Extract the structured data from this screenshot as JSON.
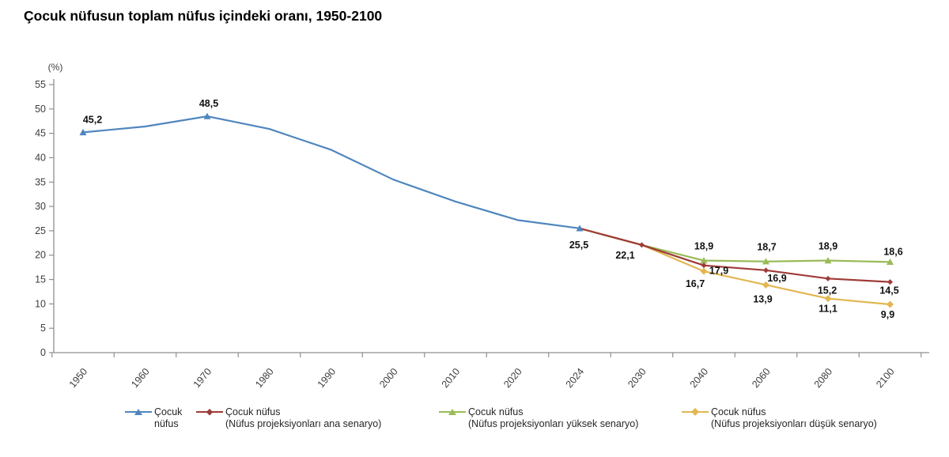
{
  "chart_data": {
    "type": "line",
    "title": "Çocuk nüfusun toplam nüfus içindeki oranı, 1950-2100",
    "y_axis_unit": "(%)",
    "ylim": [
      0,
      55
    ],
    "y_tick_step": 5,
    "y_ticks": [
      0,
      5,
      10,
      15,
      20,
      25,
      30,
      35,
      40,
      45,
      50,
      55
    ],
    "grid": "off",
    "legend_position": "bottom",
    "categories": [
      "1950",
      "1960",
      "1970",
      "1980",
      "1990",
      "2000",
      "2010",
      "2020",
      "2024",
      "2030",
      "2040",
      "2060",
      "2080",
      "2100"
    ],
    "series": [
      {
        "name": "Çocuk nüfus",
        "color": "#4f86be",
        "marker": "triangle",
        "marker_size": 4.5,
        "points": [
          {
            "x": "1950",
            "y": 45.2,
            "label": "45,2",
            "marker": true,
            "label_dx": 12,
            "label_dy": -16
          },
          {
            "x": "1960",
            "y": 46.4,
            "marker": false
          },
          {
            "x": "1970",
            "y": 48.5,
            "label": "48,5",
            "marker": true,
            "label_dx": 2,
            "label_dy": -16
          },
          {
            "x": "1980",
            "y": 45.9,
            "marker": false
          },
          {
            "x": "1990",
            "y": 41.6,
            "marker": false
          },
          {
            "x": "2000",
            "y": 35.5,
            "marker": false
          },
          {
            "x": "2010",
            "y": 31.0,
            "marker": false
          },
          {
            "x": "2020",
            "y": 27.2,
            "marker": false
          },
          {
            "x": "2024",
            "y": 25.5,
            "label": "25,5",
            "marker": true,
            "label_dx": -1,
            "label_dy": 21
          }
        ]
      },
      {
        "name": "Çocuk nüfus (Nüfus projeksiyonları ana senaryo)",
        "color": "#9e3b38",
        "marker": "diamond",
        "marker_size": 3.5,
        "points": [
          {
            "x": "2024",
            "y": 25.5,
            "marker": false
          },
          {
            "x": "2030",
            "y": 22.1,
            "label": "22,1",
            "marker": true,
            "label_dx": -21,
            "label_dy": 13
          },
          {
            "x": "2040",
            "y": 17.9,
            "label": "17,9",
            "marker": true,
            "label_dx": 19,
            "label_dy": 7
          },
          {
            "x": "2060",
            "y": 16.9,
            "label": "16,9",
            "marker": true,
            "label_dx": 14,
            "label_dy": 10
          },
          {
            "x": "2080",
            "y": 15.2,
            "label": "15,2",
            "marker": true,
            "label_dx": -1,
            "label_dy": 15
          },
          {
            "x": "2100",
            "y": 14.5,
            "label": "14,5",
            "marker": true,
            "label_dx": -1,
            "label_dy": 11
          }
        ]
      },
      {
        "name": "Çocuk nüfus (Nüfus projeksiyonları yüksek senaryo)",
        "color": "#9bbb59",
        "marker": "triangle",
        "marker_size": 4.5,
        "points": [
          {
            "x": "2024",
            "y": 25.5,
            "marker": false
          },
          {
            "x": "2030",
            "y": 22.1,
            "marker": false
          },
          {
            "x": "2040",
            "y": 18.9,
            "label": "18,9",
            "marker": true,
            "label_dx": 0,
            "label_dy": -18
          },
          {
            "x": "2060",
            "y": 18.7,
            "label": "18,7",
            "marker": true,
            "label_dx": 1,
            "label_dy": -18
          },
          {
            "x": "2080",
            "y": 18.9,
            "label": "18,9",
            "marker": true,
            "label_dx": 0,
            "label_dy": -18
          },
          {
            "x": "2100",
            "y": 18.6,
            "label": "18,6",
            "marker": true,
            "label_dx": 4,
            "label_dy": -13
          }
        ]
      },
      {
        "name": "Çocuk nüfus (Nüfus projeksiyonları düşük senaryo)",
        "color": "#e2b752",
        "marker": "diamond",
        "marker_size": 4.5,
        "points": [
          {
            "x": "2024",
            "y": 25.5,
            "marker": false
          },
          {
            "x": "2030",
            "y": 22.1,
            "marker": false
          },
          {
            "x": "2040",
            "y": 16.7,
            "label": "16,7",
            "marker": true,
            "label_dx": -11,
            "label_dy": 16
          },
          {
            "x": "2060",
            "y": 13.9,
            "label": "13,9",
            "marker": true,
            "label_dx": -4,
            "label_dy": 18
          },
          {
            "x": "2080",
            "y": 11.1,
            "label": "11,1",
            "marker": true,
            "label_dx": 0,
            "label_dy": 13
          },
          {
            "x": "2100",
            "y": 9.9,
            "label": "9,9",
            "marker": true,
            "label_dx": -3,
            "label_dy": 13
          }
        ]
      }
    ],
    "legend": [
      {
        "series": 0,
        "lines": [
          "Çocuk",
          "nüfus"
        ]
      },
      {
        "series": 1,
        "lines": [
          "Çocuk nüfus",
          "(Nüfus projeksiyonları ana senaryo)"
        ]
      },
      {
        "series": 2,
        "lines": [
          "Çocuk nüfus",
          "(Nüfus projeksiyonları yüksek senaryo)"
        ]
      },
      {
        "series": 3,
        "lines": [
          "Çocuk nüfus",
          "(Nüfus projeksiyonları düşük senaryo)"
        ]
      }
    ]
  }
}
